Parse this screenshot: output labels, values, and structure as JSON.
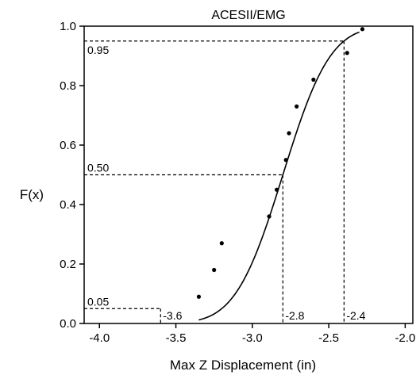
{
  "chart_data": {
    "type": "scatter",
    "title": "ACESII/EMG",
    "xlabel": "Max Z Displacement (in)",
    "ylabel": "F(x)",
    "xlim": [
      -4.1,
      -1.95
    ],
    "ylim": [
      0.0,
      1.0
    ],
    "grid": false,
    "xticks": [
      -4.0,
      -3.5,
      -3.0,
      -2.5,
      -2.0
    ],
    "xtick_labels": [
      "-4.0",
      "-3.5",
      "-3.0",
      "-2.5",
      "-2.0"
    ],
    "yticks": [
      0.0,
      0.2,
      0.4,
      0.6,
      0.8,
      1.0
    ],
    "ytick_labels": [
      "0.0",
      "0.2",
      "0.4",
      "0.6",
      "0.8",
      "1.0"
    ],
    "series": [
      {
        "kind": "points",
        "x": [
          -3.35,
          -3.25,
          -3.2,
          -2.89,
          -2.84,
          -2.78,
          -2.76,
          -2.71,
          -2.6,
          -2.38,
          -2.28
        ],
        "y": [
          0.09,
          0.18,
          0.27,
          0.36,
          0.45,
          0.55,
          0.64,
          0.73,
          0.82,
          0.91,
          0.99
        ]
      },
      {
        "kind": "fitted-curve",
        "mean": -2.8,
        "std": 0.243,
        "x_range": [
          -3.35,
          -2.3
        ]
      }
    ],
    "quantile_lines": [
      {
        "p": 0.05,
        "p_label": "0.05",
        "x": -3.6,
        "x_label": "-3.6"
      },
      {
        "p": 0.5,
        "p_label": "0.50",
        "x": -2.8,
        "x_label": "-2.8"
      },
      {
        "p": 0.95,
        "p_label": "0.95",
        "x": -2.4,
        "x_label": "-2.4"
      }
    ]
  }
}
